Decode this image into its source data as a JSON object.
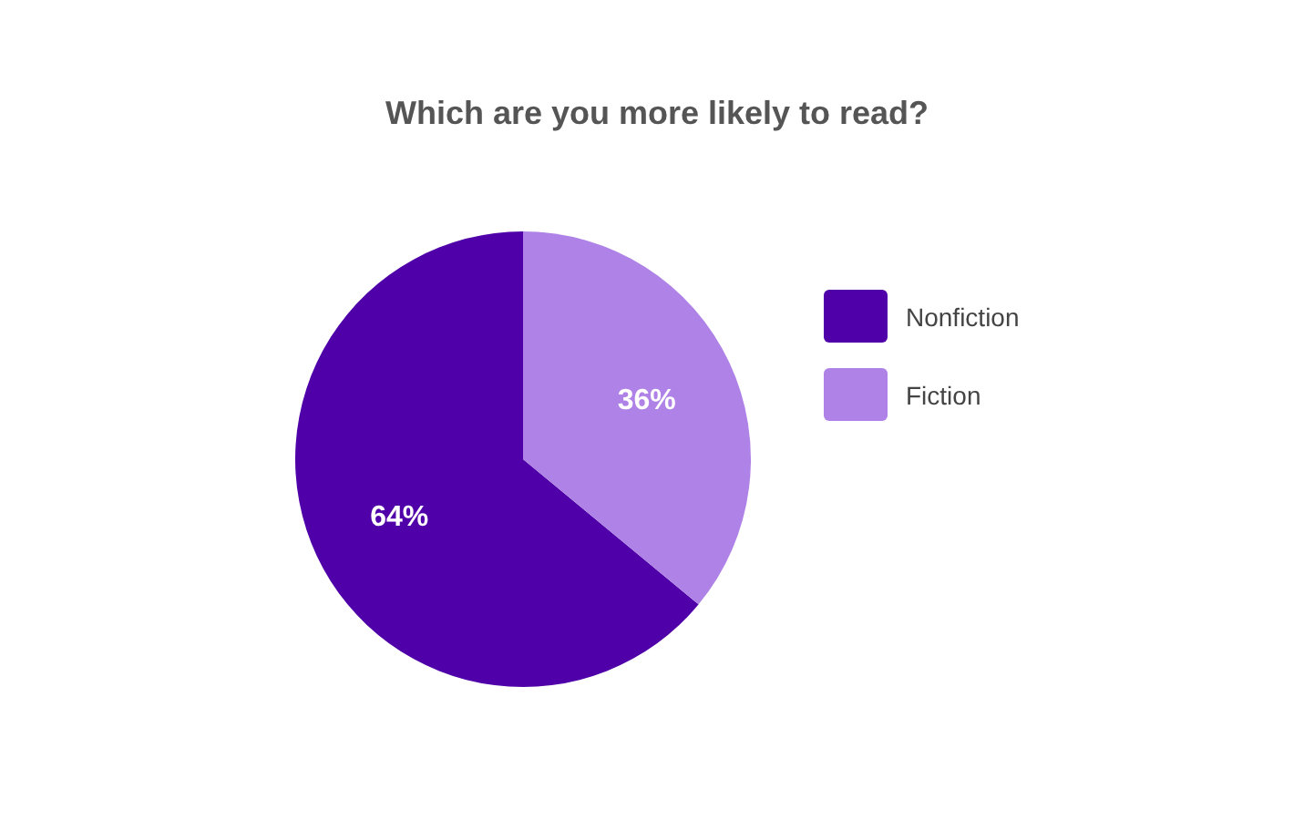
{
  "chart_data": {
    "type": "pie",
    "title": "Which are you more likely to read?",
    "categories": [
      "Nonfiction",
      "Fiction"
    ],
    "values": [
      64,
      36
    ],
    "value_labels": [
      "64%",
      "36%"
    ],
    "colors": [
      "#4f00a8",
      "#ae82e6"
    ],
    "legend": "right"
  }
}
